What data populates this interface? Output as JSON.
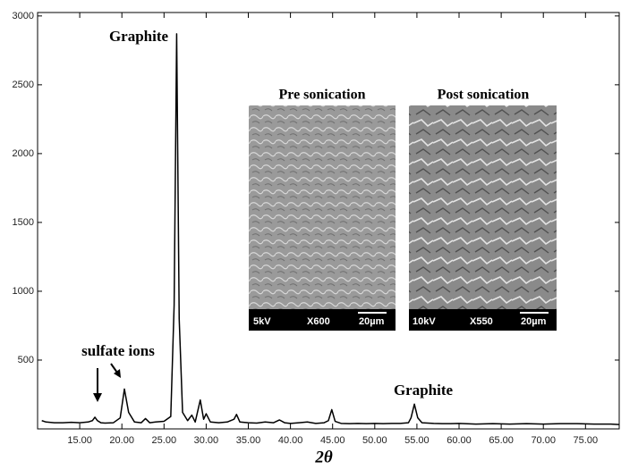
{
  "chart_data": {
    "type": "line",
    "x_label": "2θ",
    "annotations": [
      "Graphite",
      "sulfate ions",
      "Graphite"
    ],
    "insets": [
      {
        "title": "Pre sonication",
        "labels": [
          "5kV",
          "X600",
          "20µm"
        ]
      },
      {
        "title": "Post sonication",
        "labels": [
          "10kV",
          "X550",
          "20µm"
        ]
      }
    ],
    "xlim": [
      10,
      79
    ],
    "ylim": [
      0,
      3025
    ],
    "xticks": [
      {
        "value": 15,
        "label": "15.00"
      },
      {
        "value": 20,
        "label": "20.00"
      },
      {
        "value": 25,
        "label": "25.00"
      },
      {
        "value": 30,
        "label": "30.00"
      },
      {
        "value": 35,
        "label": "35.00"
      },
      {
        "value": 40,
        "label": "40.00"
      },
      {
        "value": 45,
        "label": "45.00"
      },
      {
        "value": 50,
        "label": "50.00"
      },
      {
        "value": 55,
        "label": "55.00"
      },
      {
        "value": 60,
        "label": "60.00"
      },
      {
        "value": 65,
        "label": "65.00"
      },
      {
        "value": 70,
        "label": "70.00"
      },
      {
        "value": 75,
        "label": "75.00"
      }
    ],
    "yticks": [
      500,
      1000,
      1500,
      2000,
      2500,
      3000
    ],
    "x": [
      10.5,
      11,
      12,
      13,
      14,
      15,
      16,
      16.5,
      16.8,
      17.1,
      17.5,
      18,
      19,
      19.8,
      20.3,
      20.8,
      21.5,
      22.3,
      22.8,
      23.3,
      24,
      25,
      25.8,
      26.2,
      26.5,
      26.8,
      27.2,
      27.8,
      28.3,
      28.7,
      29.3,
      29.7,
      30,
      30.5,
      31.5,
      32.5,
      33.3,
      33.6,
      34,
      35,
      36,
      37,
      38,
      38.7,
      39.3,
      40,
      41,
      42,
      43,
      44,
      44.5,
      44.9,
      45.3,
      46,
      47,
      48,
      49,
      50,
      51,
      52,
      53,
      54,
      54.3,
      54.7,
      55.1,
      55.6,
      57,
      58,
      59,
      60,
      62,
      64,
      66,
      68,
      70,
      72,
      74,
      76,
      78,
      79
    ],
    "series": [
      {
        "color": "#000000",
        "values": [
          60,
          50,
          45,
          45,
          48,
          45,
          50,
          60,
          85,
          60,
          45,
          42,
          45,
          80,
          290,
          120,
          50,
          45,
          75,
          45,
          50,
          55,
          90,
          900,
          2870,
          800,
          120,
          60,
          100,
          50,
          210,
          70,
          110,
          50,
          45,
          50,
          70,
          105,
          50,
          45,
          42,
          50,
          45,
          65,
          45,
          40,
          45,
          50,
          40,
          45,
          60,
          140,
          55,
          40,
          38,
          40,
          38,
          40,
          38,
          40,
          40,
          45,
          80,
          180,
          80,
          45,
          40,
          38,
          38,
          40,
          35,
          38,
          35,
          38,
          35,
          38,
          38,
          35,
          35,
          32
        ]
      }
    ]
  }
}
